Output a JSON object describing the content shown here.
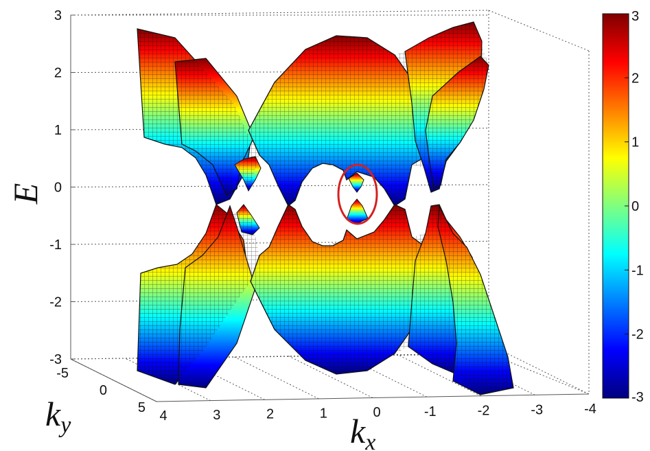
{
  "chart_data": {
    "type": "surface",
    "xlabel": "k",
    "xlabel_sub": "x",
    "ylabel": "k",
    "ylabel_sub": "y",
    "zlabel": "E",
    "x_ticks": [
      "4",
      "3",
      "2",
      "1",
      "0",
      "-1",
      "-2",
      "-3",
      "-4"
    ],
    "y_ticks": [
      "-5",
      "0",
      "5"
    ],
    "z_ticks": [
      "3",
      "2",
      "1",
      "0",
      "-1",
      "-2",
      "-3"
    ],
    "xlim": [
      -4,
      4
    ],
    "ylim": [
      -5,
      5
    ],
    "zlim": [
      -3,
      3
    ],
    "grid": true,
    "colormap": "jet",
    "colorbar": {
      "range": [
        -3,
        3
      ],
      "ticks": [
        "3",
        "2",
        "1",
        "0",
        "-1",
        "-2",
        "-3"
      ]
    },
    "surfaces": [
      {
        "band": "upper",
        "z_range": [
          0,
          3
        ]
      },
      {
        "band": "lower",
        "z_range": [
          -3,
          0
        ]
      }
    ],
    "annotation": {
      "shape": "ellipse",
      "color": "#d42020",
      "marks": "band touching point near kx = 0"
    }
  },
  "colors": {
    "jet": [
      "#00007f",
      "#0000ff",
      "#007fff",
      "#00ffff",
      "#7fff7f",
      "#ffff00",
      "#ff7f00",
      "#ff0000",
      "#7f0000"
    ],
    "grid": "#555555",
    "mesh": "#111111",
    "annotation": "#d42020"
  }
}
